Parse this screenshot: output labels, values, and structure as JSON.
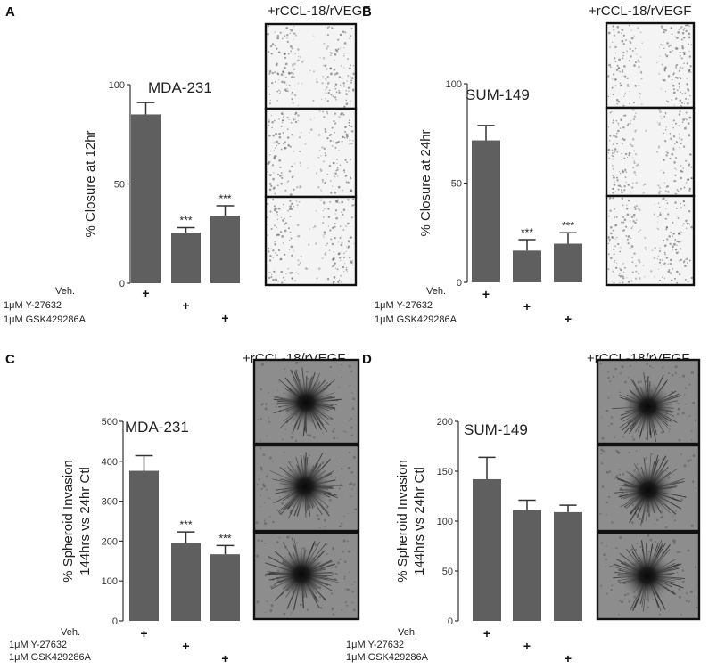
{
  "treatment_title": "+rCCL-18/rVEGF",
  "conditions": [
    "Veh.",
    "1μM Y-27632",
    "1μM GSK429286A"
  ],
  "chart_data": [
    {
      "type": "bar",
      "panel": "A",
      "title": "MDA-231",
      "ylabel": "% Closure at 12hr",
      "ylim": [
        0,
        100
      ],
      "yticks": [
        0,
        50,
        100
      ],
      "categories": [
        "Veh.",
        "1μM Y-27632",
        "1μM GSK429286A"
      ],
      "values": [
        85,
        25.5,
        34
      ],
      "errors": [
        6,
        2.5,
        5
      ],
      "significance": [
        "",
        "***",
        "***"
      ],
      "images": {
        "count": 3,
        "type": "wound"
      }
    },
    {
      "type": "bar",
      "panel": "B",
      "title": "SUM-149",
      "ylabel": "% Closure at 24hr",
      "ylim": [
        0,
        100
      ],
      "yticks": [
        0,
        50,
        100
      ],
      "categories": [
        "Veh.",
        "1μM Y-27632",
        "1μM GSK429286A"
      ],
      "values": [
        71.5,
        16,
        19.5
      ],
      "errors": [
        7.5,
        5.5,
        5.5
      ],
      "significance": [
        "",
        "***",
        "***"
      ],
      "images": {
        "count": 3,
        "type": "wound"
      }
    },
    {
      "type": "bar",
      "panel": "C",
      "title": "MDA-231",
      "ylabel": "% Spheroid Invasion",
      "ylabel2": "144hrs vs 24hr Ctl",
      "ylim": [
        0,
        500
      ],
      "yticks": [
        0,
        100,
        200,
        300,
        400,
        500
      ],
      "categories": [
        "Veh.",
        "1μM Y-27632",
        "1μM GSK429286A"
      ],
      "values": [
        376,
        195,
        167
      ],
      "errors": [
        38,
        28,
        22
      ],
      "significance": [
        "",
        "***",
        "***"
      ],
      "images": {
        "count": 3,
        "type": "spheroid"
      }
    },
    {
      "type": "bar",
      "panel": "D",
      "title": "SUM-149",
      "ylabel": "% Spheroid Invasion",
      "ylabel2": "144hrs vs 24hr Ctl",
      "ylim": [
        0,
        200
      ],
      "yticks": [
        0,
        50,
        100,
        150,
        200
      ],
      "categories": [
        "Veh.",
        "1μM Y-27632",
        "1μM GSK429286A"
      ],
      "values": [
        142,
        111,
        109
      ],
      "errors": [
        22,
        10,
        7
      ],
      "significance": [
        "",
        "",
        ""
      ],
      "images": {
        "count": 3,
        "type": "spheroid"
      }
    }
  ]
}
